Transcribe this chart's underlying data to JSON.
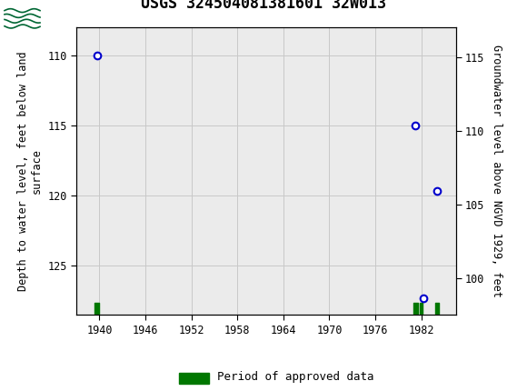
{
  "title": "USGS 324504081381601 32W013",
  "ylabel_left": "Depth to water level, feet below land\nsurface",
  "ylabel_right": "Groundwater level above NGVD 1929, feet",
  "data_points": [
    {
      "year": 1939.7,
      "depth": 110.0
    },
    {
      "year": 1981.2,
      "depth": 115.0
    },
    {
      "year": 1984.1,
      "depth": 119.7
    },
    {
      "year": 1982.3,
      "depth": 127.3
    }
  ],
  "approved_periods": [
    {
      "start": 1939.3,
      "end": 1939.9
    },
    {
      "start": 1981.0,
      "end": 1981.5
    },
    {
      "start": 1981.8,
      "end": 1982.2
    },
    {
      "start": 1983.8,
      "end": 1984.3
    }
  ],
  "ylim_left": [
    128.5,
    108.0
  ],
  "ylim_right": [
    97.5,
    117.0
  ],
  "xlim": [
    1937,
    1986.5
  ],
  "xticks": [
    1940,
    1946,
    1952,
    1958,
    1964,
    1970,
    1976,
    1982
  ],
  "yticks_left": [
    110,
    115,
    120,
    125
  ],
  "yticks_right": [
    115,
    110,
    105,
    100
  ],
  "header_color": "#005c2f",
  "plot_bg_color": "#ebebeb",
  "grid_color": "#c8c8c8",
  "marker_color": "#0000cc",
  "approved_color": "#007700",
  "title_fontsize": 12,
  "axis_label_fontsize": 8.5,
  "tick_fontsize": 8.5,
  "legend_fontsize": 9
}
